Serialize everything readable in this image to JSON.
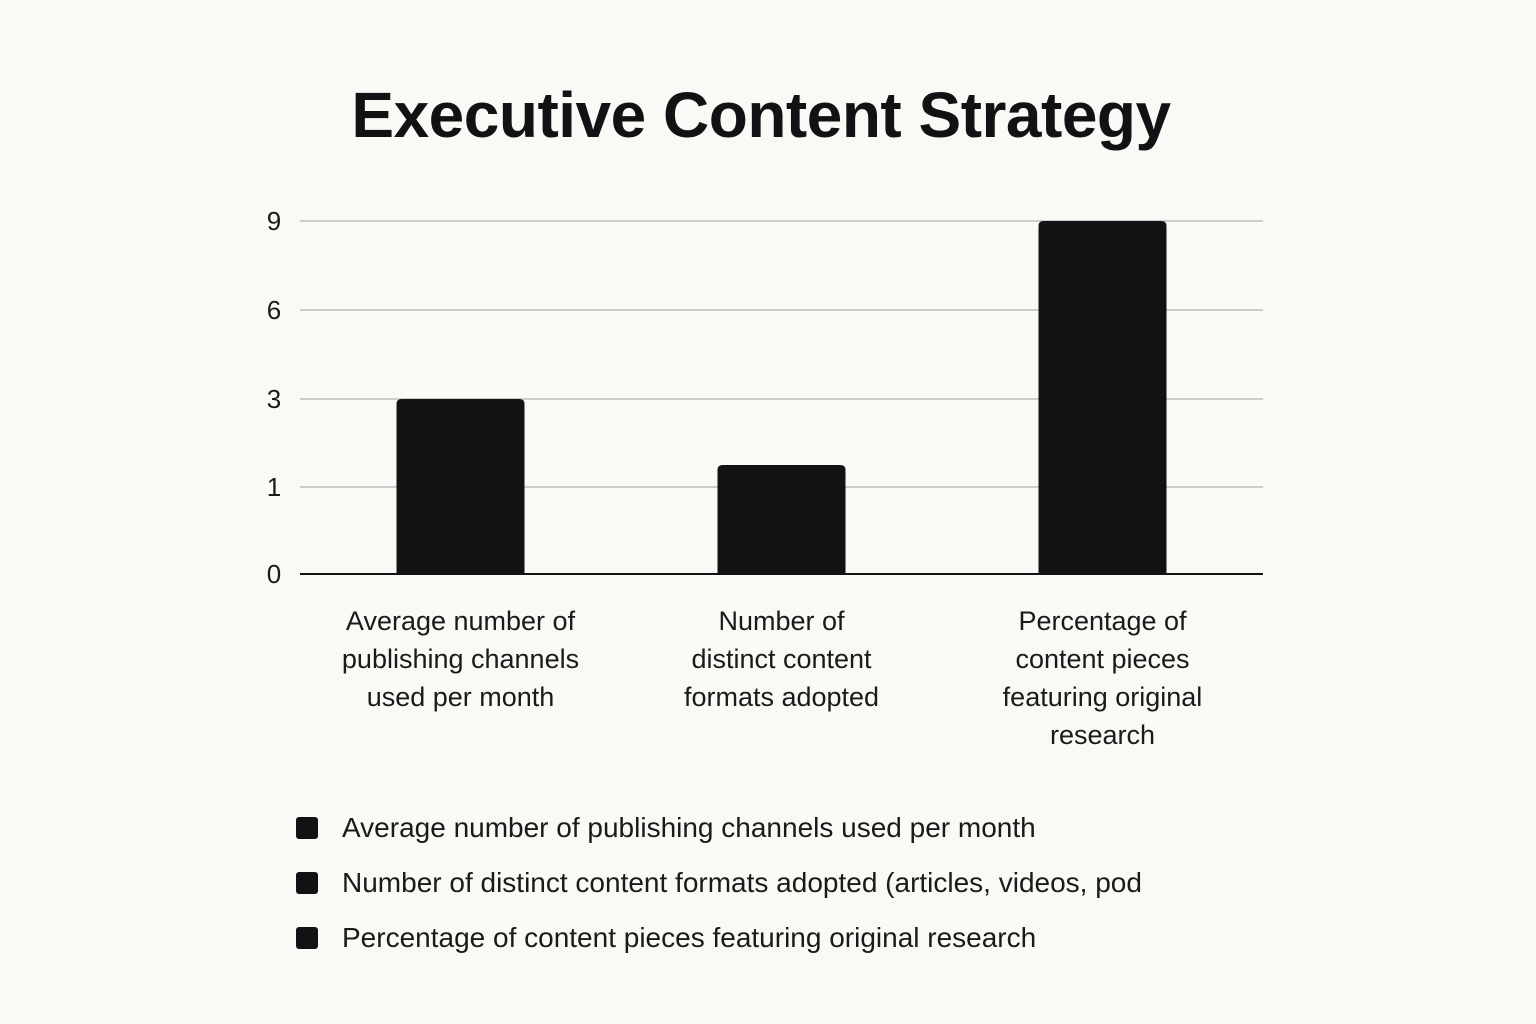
{
  "chart_data": {
    "type": "bar",
    "title": "Executive Content Strategy",
    "xlabel": "",
    "ylabel": "",
    "y_ticks": [
      "0",
      "1",
      "3",
      "6",
      "9"
    ],
    "categories": [
      [
        "Average number of",
        "publishing channels",
        "used per month"
      ],
      [
        "Number of",
        "distinct content",
        "formats adopted"
      ],
      [
        "Percentage of",
        "content pieces",
        "featuring original",
        "research"
      ]
    ],
    "values": [
      3,
      1.5,
      9
    ],
    "bar_color": "#111214",
    "grid": true,
    "legend_position": "bottom-left",
    "legend": [
      "Average number of publishing channels used per month",
      "Number of distinct content formats adopted (articles, videos, pod",
      "Percentage of content pieces featuring original research"
    ]
  }
}
